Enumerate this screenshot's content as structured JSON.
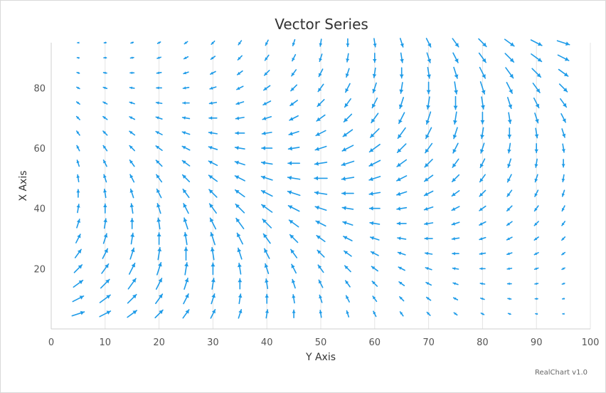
{
  "chart_data": {
    "type": "vector",
    "title": "Vector Series",
    "xlabel": "Y Axis",
    "ylabel": "X Axis",
    "xlim": [
      0,
      100
    ],
    "ylim": [
      0,
      95
    ],
    "x_ticks": [
      0,
      10,
      20,
      30,
      40,
      50,
      60,
      70,
      80,
      90,
      100
    ],
    "y_ticks": [
      20,
      40,
      60,
      80
    ],
    "grid": "vertical",
    "x_positions": [
      5,
      10,
      15,
      20,
      25,
      30,
      35,
      40,
      45,
      50,
      55,
      60,
      65,
      70,
      75,
      80,
      85,
      90,
      95
    ],
    "y_positions": [
      5,
      10,
      15,
      20,
      25,
      30,
      35,
      40,
      45,
      50,
      55,
      60,
      65,
      70,
      75,
      80,
      85,
      90,
      95
    ],
    "field": "angle = (x + y) / 100 * 180 deg; length = (1 - |x - y| / 100) * base",
    "color": "#1e9be8"
  },
  "credit": "RealChart v1.0"
}
